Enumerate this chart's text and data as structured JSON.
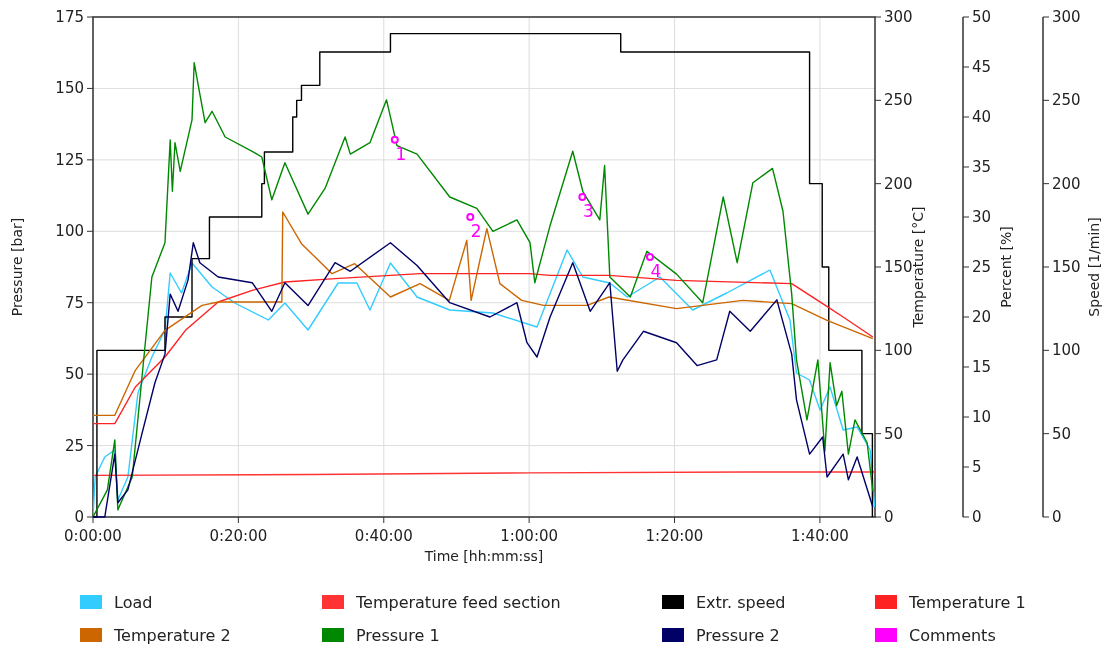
{
  "chart_data": {
    "type": "line",
    "xlabel": "Time [hh:mm:ss]",
    "ylabel": "Pressure [bar]",
    "y2label": "Temperature [°C]",
    "y3label": "Percent [%]",
    "xlim": [
      0,
      1.793
    ],
    "xticks": [
      {
        "value": 0,
        "label": "0:00:00"
      },
      {
        "value": 0.3333,
        "label": "0:20:00"
      },
      {
        "value": 0.6667,
        "label": "0:40:00"
      },
      {
        "value": 1,
        "label": "1:00:00"
      },
      {
        "value": 1.3333,
        "label": "1:20:00"
      },
      {
        "value": 1.6667,
        "label": "1:40:00"
      }
    ],
    "ylim": [
      0,
      175
    ],
    "yticks": [
      0,
      25,
      50,
      75,
      100,
      125,
      150,
      175
    ],
    "y2lim": [
      0,
      300
    ],
    "y2ticks": [
      0,
      50,
      100,
      150,
      200,
      250,
      300
    ],
    "y3lim": [
      0,
      50
    ],
    "y3ticks": [
      0,
      5,
      10,
      15,
      20,
      25,
      30,
      35,
      40,
      45,
      50
    ],
    "grid": true,
    "legend": "bottom",
    "series": [
      {
        "name": "Load",
        "color": "#33ccff",
        "axis": "y3",
        "x": [
          0,
          0.005,
          0.027,
          0.05,
          0.057,
          0.08,
          0.103,
          0.135,
          0.165,
          0.177,
          0.203,
          0.227,
          0.273,
          0.325,
          0.402,
          0.44,
          0.493,
          0.562,
          0.605,
          0.635,
          0.682,
          0.743,
          0.818,
          0.917,
          1.018,
          1.087,
          1.123,
          1.185,
          1.225,
          1.3,
          1.375,
          1.453,
          1.552,
          1.598,
          1.613,
          1.643,
          1.667,
          1.69,
          1.72,
          1.752,
          1.782,
          1.792
        ],
        "values": [
          0,
          4,
          6,
          6.7,
          1.7,
          4,
          12.4,
          16,
          18.7,
          24.4,
          22.4,
          25.4,
          23,
          21.4,
          19.7,
          21.4,
          18.7,
          23.4,
          23.4,
          20.7,
          25.4,
          22,
          20.7,
          20.4,
          19,
          26.7,
          24,
          23.4,
          22,
          24,
          20.7,
          22.4,
          24.7,
          19.7,
          14.4,
          13.7,
          10.7,
          13,
          8.7,
          9,
          6.7,
          1
        ]
      },
      {
        "name": "Temperature feed section",
        "color": "#ff3333",
        "axis": "y2",
        "x": [
          0,
          0.5,
          1,
          1.5,
          1.793
        ],
        "values": [
          25,
          25.5,
          26.5,
          27,
          27
        ]
      },
      {
        "name": "Extr. speed",
        "color": "#000000",
        "type": "step",
        "axis": "y2",
        "x": [
          0,
          0.009,
          0.165,
          0.227,
          0.267,
          0.387,
          0.393,
          0.458,
          0.467,
          0.478,
          0.52,
          0.682,
          1.21,
          1.643,
          1.672,
          1.687,
          1.763,
          1.787
        ],
        "values": [
          0,
          100,
          120,
          155,
          180,
          200,
          219,
          240,
          250,
          259,
          279,
          290,
          279,
          200,
          150,
          100,
          50,
          0
        ]
      },
      {
        "name": "Temperature 1",
        "color": "#ff2222",
        "axis": "y2",
        "x": [
          0,
          0.05,
          0.097,
          0.165,
          0.212,
          0.287,
          0.365,
          0.44,
          0.555,
          0.75,
          1.0,
          1.048,
          1.183,
          1.338,
          1.602,
          1.673,
          1.72,
          1.788
        ],
        "values": [
          56,
          56,
          78,
          96,
          112,
          129,
          136,
          141,
          143,
          146,
          146,
          145,
          145,
          142,
          140,
          128,
          120,
          108
        ]
      },
      {
        "name": "Temperature 2",
        "color": "#cc6600",
        "axis": "y2",
        "x": [
          0,
          0.05,
          0.097,
          0.165,
          0.25,
          0.287,
          0.433,
          0.435,
          0.478,
          0.548,
          0.6,
          0.682,
          0.75,
          0.817,
          0.857,
          0.867,
          0.903,
          0.933,
          0.983,
          1.033,
          1.133,
          1.183,
          1.338,
          1.49,
          1.602,
          1.683,
          1.788
        ],
        "values": [
          61,
          61,
          88,
          112,
          127,
          129,
          129,
          183,
          164,
          146,
          152,
          132,
          140,
          130,
          166,
          130,
          173,
          140,
          130,
          127,
          127,
          132,
          125,
          130,
          128,
          118,
          107
        ]
      },
      {
        "name": "Pressure 1",
        "color": "#008800",
        "x": [
          0,
          0.033,
          0.05,
          0.057,
          0.09,
          0.12,
          0.135,
          0.165,
          0.177,
          0.182,
          0.188,
          0.2,
          0.227,
          0.232,
          0.245,
          0.257,
          0.273,
          0.303,
          0.365,
          0.387,
          0.41,
          0.44,
          0.493,
          0.532,
          0.578,
          0.59,
          0.635,
          0.673,
          0.697,
          0.743,
          0.818,
          0.88,
          0.917,
          0.972,
          1.002,
          1.013,
          1.048,
          1.1,
          1.123,
          1.162,
          1.173,
          1.185,
          1.232,
          1.27,
          1.338,
          1.398,
          1.445,
          1.477,
          1.513,
          1.558,
          1.582,
          1.602,
          1.613,
          1.637,
          1.662,
          1.678,
          1.69,
          1.705,
          1.717,
          1.732,
          1.747,
          1.775,
          1.788
        ],
        "values": [
          0,
          9.5,
          27,
          2.5,
          14,
          61,
          84,
          96,
          132,
          114,
          131,
          121,
          139,
          159,
          148,
          138,
          142,
          133,
          128,
          126,
          111,
          124,
          106,
          115,
          133,
          127,
          131,
          146,
          130,
          127,
          112,
          108,
          100,
          104,
          96,
          82,
          102,
          128,
          114,
          104,
          123,
          84,
          77,
          93,
          85,
          75,
          112,
          89,
          117,
          122,
          107,
          78,
          55,
          34,
          55,
          23,
          54,
          39,
          44,
          22,
          34,
          26,
          9
        ]
      },
      {
        "name": "Pressure 2",
        "color": "#000066",
        "x": [
          0,
          0.027,
          0.05,
          0.057,
          0.08,
          0.112,
          0.142,
          0.165,
          0.177,
          0.195,
          0.218,
          0.23,
          0.245,
          0.287,
          0.365,
          0.41,
          0.44,
          0.493,
          0.555,
          0.59,
          0.682,
          0.743,
          0.818,
          0.91,
          0.972,
          0.995,
          1.018,
          1.048,
          1.1,
          1.14,
          1.185,
          1.202,
          1.215,
          1.262,
          1.338,
          1.385,
          1.43,
          1.46,
          1.507,
          1.568,
          1.602,
          1.613,
          1.643,
          1.673,
          1.683,
          1.72,
          1.732,
          1.752,
          1.788
        ],
        "values": [
          0,
          0,
          22,
          5,
          9.5,
          29,
          47,
          57,
          78,
          72,
          83,
          96,
          89,
          84,
          82,
          72,
          82,
          74,
          89,
          86,
          96,
          88,
          75,
          70,
          75,
          61,
          56,
          70,
          89,
          72,
          82,
          51,
          55,
          65,
          61,
          53,
          55,
          72,
          65,
          76,
          57,
          41,
          22,
          28,
          14,
          22,
          13,
          21,
          3.5
        ]
      },
      {
        "name": "Comments",
        "color": "#ff00ff",
        "type": "scatter",
        "marker": "circle",
        "x": [
          0.692,
          0.865,
          1.122,
          1.277
        ],
        "values": [
          132,
          105,
          112,
          91
        ]
      }
    ],
    "annotations": [
      "Speed [1/min]",
      "0",
      "50",
      "100",
      "150",
      "200",
      "250",
      "300",
      {
        "text": "1",
        "x": 0.692,
        "y": 132
      },
      {
        "text": "2",
        "x": 0.865,
        "y": 105
      },
      {
        "text": "3",
        "x": 1.122,
        "y": 112
      },
      {
        "text": "4",
        "x": 1.277,
        "y": 91
      }
    ]
  }
}
